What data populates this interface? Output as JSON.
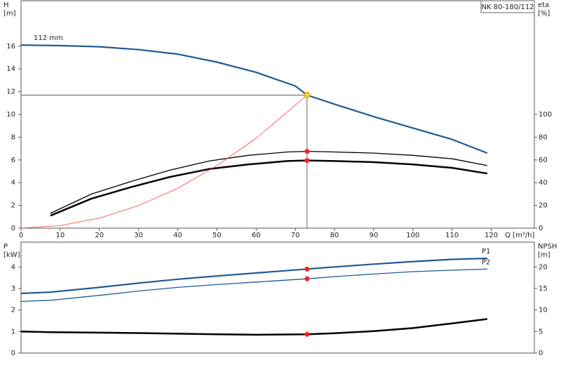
{
  "chart_data": [
    {
      "type": "line",
      "title": "NK 80-180/112",
      "xlabel": "Q [m³/h]",
      "ylabel": "H",
      "ylabel_unit": "[m]",
      "y2label": "eta",
      "y2label_unit": "[%]",
      "xlim": [
        0,
        131
      ],
      "xticks": [
        0,
        10,
        20,
        30,
        40,
        50,
        60,
        70,
        80,
        90,
        100,
        110,
        120
      ],
      "ylim": [
        0,
        20
      ],
      "yticks": [
        0,
        2,
        4,
        6,
        8,
        10,
        12,
        14,
        16
      ],
      "y2lim": [
        0,
        200
      ],
      "y2ticks": [
        0,
        20,
        40,
        60,
        80,
        100
      ],
      "operating_point": {
        "x": 73,
        "y": 11.7,
        "color": "#ffd21f"
      },
      "series": [
        {
          "name": "112 mm",
          "label_at": "start",
          "color": "#1f5a96",
          "width": 2.2,
          "x": [
            0,
            10,
            20,
            30,
            40,
            50,
            60,
            70,
            73,
            80,
            90,
            100,
            110,
            119
          ],
          "values": [
            16.1,
            16.05,
            15.95,
            15.7,
            15.3,
            14.6,
            13.7,
            12.5,
            11.7,
            10.9,
            9.8,
            8.8,
            7.8,
            6.6
          ]
        },
        {
          "color": "#000000",
          "width": 1.3,
          "axis": "y2",
          "marker": true,
          "x": [
            7.5,
            18,
            28,
            38,
            48,
            58,
            68,
            73,
            80,
            90,
            100,
            110,
            119
          ],
          "values": [
            13,
            30,
            41,
            51,
            59,
            64,
            67,
            67.5,
            67,
            66,
            64,
            61,
            55
          ]
        },
        {
          "color": "#000000",
          "width": 2.5,
          "axis": "y2",
          "marker": true,
          "x": [
            7.5,
            18,
            28,
            38,
            48,
            58,
            68,
            73,
            80,
            90,
            100,
            110,
            119
          ],
          "values": [
            11,
            26,
            36,
            45,
            52,
            56,
            59,
            59.5,
            59,
            58,
            56,
            53,
            48
          ]
        },
        {
          "color": "#ff4040",
          "width": 0.8,
          "x": [
            0,
            10,
            20,
            30,
            40,
            50,
            60,
            73
          ],
          "values": [
            0,
            0.22,
            0.88,
            1.98,
            3.5,
            5.5,
            7.9,
            11.7
          ]
        }
      ]
    },
    {
      "type": "line",
      "ylabel": "P",
      "ylabel_unit": "[kW]",
      "y2label": "NPSH",
      "y2label_unit": "[m]",
      "xlim": [
        0,
        131
      ],
      "ylim": [
        0,
        5.15
      ],
      "yticks": [
        0,
        1,
        2,
        3,
        4
      ],
      "y2lim": [
        0,
        25.75
      ],
      "y2ticks": [
        0,
        5,
        10,
        15,
        20
      ],
      "marker_x": 73,
      "series": [
        {
          "name": "P1",
          "label_at": "end",
          "color": "#1f5a96",
          "width": 2.2,
          "marker": true,
          "x": [
            0,
            7.5,
            20,
            30,
            40,
            50,
            60,
            73,
            80,
            90,
            100,
            110,
            119
          ],
          "values": [
            2.77,
            2.83,
            3.05,
            3.25,
            3.43,
            3.58,
            3.72,
            3.9,
            4.0,
            4.13,
            4.25,
            4.35,
            4.4
          ]
        },
        {
          "name": "P2",
          "label_at": "end",
          "color": "#1f5a96",
          "width": 1.3,
          "marker": true,
          "x": [
            0,
            7.5,
            20,
            30,
            40,
            50,
            60,
            73,
            80,
            90,
            100,
            110,
            119
          ],
          "values": [
            2.4,
            2.45,
            2.68,
            2.88,
            3.05,
            3.18,
            3.3,
            3.45,
            3.55,
            3.67,
            3.78,
            3.85,
            3.9
          ]
        },
        {
          "color": "#000000",
          "width": 2.5,
          "axis": "y2",
          "marker": true,
          "x": [
            0,
            7.5,
            20,
            30,
            40,
            50,
            60,
            73,
            80,
            90,
            100,
            110,
            119
          ],
          "values": [
            5.0,
            4.85,
            4.75,
            4.65,
            4.5,
            4.35,
            4.25,
            4.35,
            4.6,
            5.1,
            5.8,
            6.9,
            7.9
          ]
        }
      ]
    }
  ]
}
